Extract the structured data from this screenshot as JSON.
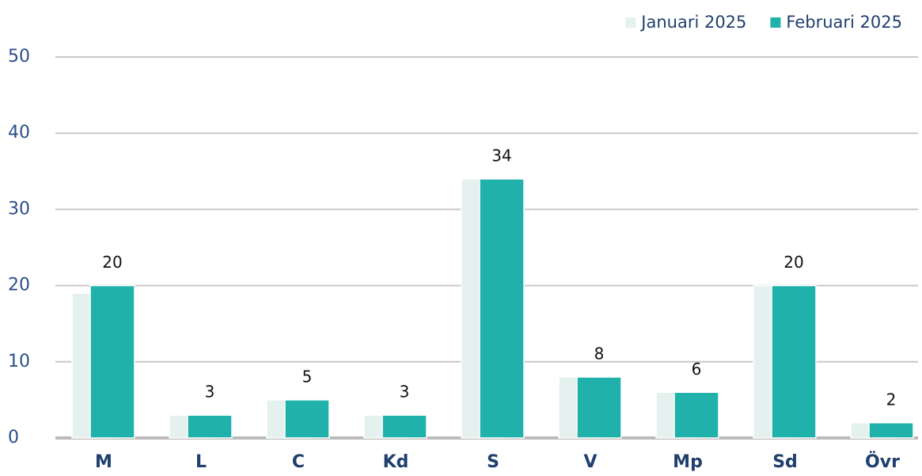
{
  "chart_data": {
    "type": "bar",
    "categories": [
      "M",
      "L",
      "C",
      "Kd",
      "S",
      "V",
      "Mp",
      "Sd",
      "Övr"
    ],
    "series": [
      {
        "name": "Januari 2025",
        "color": "#e4f1ee",
        "values": [
          19,
          3,
          5,
          3,
          34,
          8,
          6,
          20,
          2
        ]
      },
      {
        "name": "Februari 2025",
        "color": "#20b2aa",
        "values": [
          20,
          3,
          5,
          3,
          34,
          8,
          6,
          20,
          2
        ]
      }
    ],
    "ylim": [
      0,
      50
    ],
    "yticks": [
      0,
      10,
      20,
      30,
      40,
      50
    ],
    "grid": true
  }
}
